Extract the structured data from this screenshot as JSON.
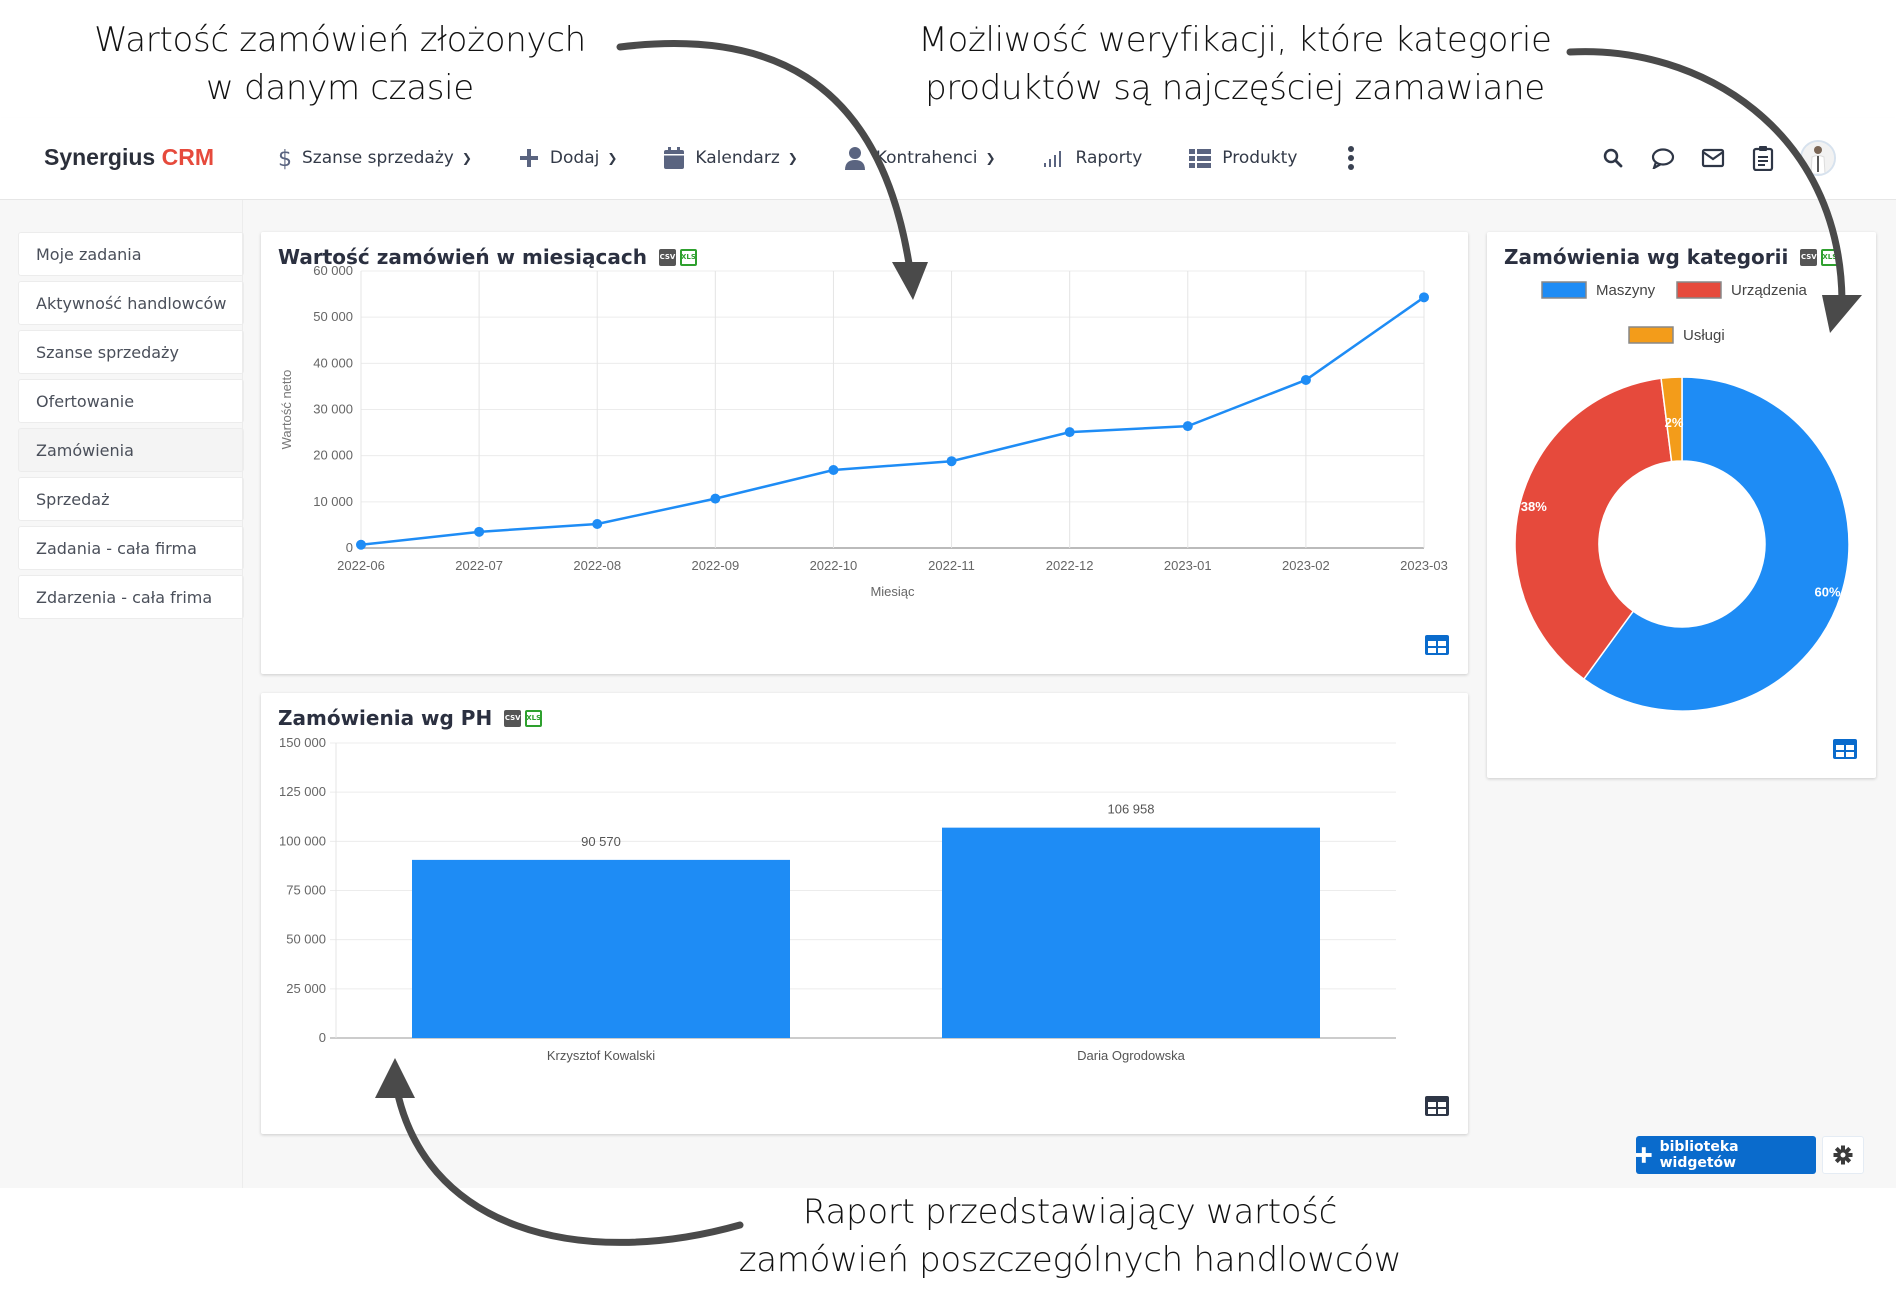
{
  "annotations": {
    "top_left": [
      "Wartość zamówień złożonych",
      "w danym czasie"
    ],
    "top_right": [
      "Możliwość weryfikacji, które kategorie",
      "produktów są najczęściej zamawiane"
    ],
    "bottom": [
      "Raport przedstawiający wartość",
      "zamówień poszczególnych handlowców"
    ]
  },
  "header": {
    "brand_name": "Synergius",
    "brand_accent": "CRM",
    "brand_accent_color": "#e64a3c",
    "nav": [
      {
        "label": "Szanse sprzedaży",
        "icon": "dollar-icon",
        "dropdown": true
      },
      {
        "label": "Dodaj",
        "icon": "plus-icon",
        "dropdown": true
      },
      {
        "label": "Kalendarz",
        "icon": "calendar-icon",
        "dropdown": true
      },
      {
        "label": "Kontrahenci",
        "icon": "user-icon",
        "dropdown": true
      },
      {
        "label": "Raporty",
        "icon": "bar-signal-icon",
        "dropdown": false
      },
      {
        "label": "Produkty",
        "icon": "list-icon",
        "dropdown": false
      }
    ],
    "chevron": "⌄",
    "right_icons": [
      "search-icon",
      "chat-icon",
      "mail-icon",
      "clipboard-icon",
      "avatar"
    ]
  },
  "sidebar": {
    "items": [
      {
        "label": "Moje zadania",
        "active": false
      },
      {
        "label": "Aktywność handlowców",
        "active": false
      },
      {
        "label": "Szanse sprzedaży",
        "active": false
      },
      {
        "label": "Ofertowanie",
        "active": false
      },
      {
        "label": "Zamówienia",
        "active": true
      },
      {
        "label": "Sprzedaż",
        "active": false
      },
      {
        "label": "Zadania - cała firma",
        "active": false
      },
      {
        "label": "Zdarzenia - cała frima",
        "active": false
      }
    ]
  },
  "widgets": {
    "line": {
      "title": "Wartość zamówień w miesiącach",
      "export_csv": "CSV",
      "export_xls": "XLS"
    },
    "bar": {
      "title": "Zamówienia wg PH",
      "export_csv": "CSV",
      "export_xls": "XLS"
    },
    "donut": {
      "title": "Zamówienia wg kategorii",
      "export_csv": "CSV",
      "export_xls": "XLS"
    }
  },
  "footer": {
    "widget_library_label": "biblioteka widgetów",
    "accent_color": "#0a6bcc"
  },
  "chart_data": [
    {
      "type": "line",
      "title": "Wartość zamówień w miesiącach",
      "xlabel": "Miesiąc",
      "ylabel": "Wartość netto",
      "categories": [
        "2022-06",
        "2022-07",
        "2022-08",
        "2022-09",
        "2022-10",
        "2022-11",
        "2022-12",
        "2023-01",
        "2023-02",
        "2023-03"
      ],
      "values": [
        700,
        3500,
        5200,
        10700,
        16900,
        18800,
        25100,
        26400,
        36400,
        54300
      ],
      "yticks": [
        "0",
        "10 000",
        "20 000",
        "30 000",
        "40 000",
        "50 000",
        "60 000"
      ],
      "ylim": [
        0,
        60000
      ],
      "grid": true,
      "color": "#1e8cf5"
    },
    {
      "type": "bar",
      "title": "Zamówienia wg PH",
      "categories": [
        "Krzysztof Kowalski",
        "Daria Ogrodowska"
      ],
      "values": [
        90570,
        106958
      ],
      "value_labels": [
        "90 570",
        "106 958"
      ],
      "yticks": [
        "0",
        "25 000",
        "50 000",
        "75 000",
        "100 000",
        "125 000",
        "150 000"
      ],
      "ylim": [
        0,
        150000
      ],
      "grid": true,
      "color": "#1e8cf5"
    },
    {
      "type": "pie",
      "title": "Zamówienia wg kategorii",
      "donut": true,
      "categories": [
        "Maszyny",
        "Urządzenia",
        "Usługi"
      ],
      "values": [
        60,
        38,
        2
      ],
      "value_labels": [
        "60%",
        "38%",
        "2%"
      ],
      "colors": [
        "#1e8cf5",
        "#e64a3c",
        "#f39c1a"
      ],
      "legend_position": "top"
    }
  ]
}
